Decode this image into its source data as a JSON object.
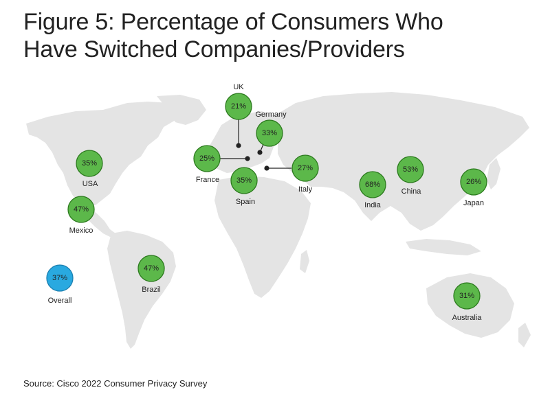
{
  "title": {
    "line1": "Figure 5: Percentage of Consumers Who",
    "line2": "Have Switched Companies/Providers"
  },
  "source": "Source: Cisco 2022 Consumer Privacy Survey",
  "colors": {
    "country_bubble": "#5cb84a",
    "overall_bubble": "#29a9e0",
    "land": "#e4e4e4"
  },
  "markers": [
    {
      "id": "usa",
      "country": "USA",
      "value": "35%"
    },
    {
      "id": "mexico",
      "country": "Mexico",
      "value": "47%"
    },
    {
      "id": "brazil",
      "country": "Brazil",
      "value": "47%"
    },
    {
      "id": "uk",
      "country": "UK",
      "value": "21%"
    },
    {
      "id": "germany",
      "country": "Germany",
      "value": "33%"
    },
    {
      "id": "france",
      "country": "France",
      "value": "25%"
    },
    {
      "id": "spain",
      "country": "Spain",
      "value": "35%"
    },
    {
      "id": "italy",
      "country": "Italy",
      "value": "27%"
    },
    {
      "id": "india",
      "country": "India",
      "value": "68%"
    },
    {
      "id": "china",
      "country": "China",
      "value": "53%"
    },
    {
      "id": "japan",
      "country": "Japan",
      "value": "26%"
    },
    {
      "id": "australia",
      "country": "Australia",
      "value": "31%"
    },
    {
      "id": "overall",
      "country": "Overall",
      "value": "37%"
    }
  ]
}
